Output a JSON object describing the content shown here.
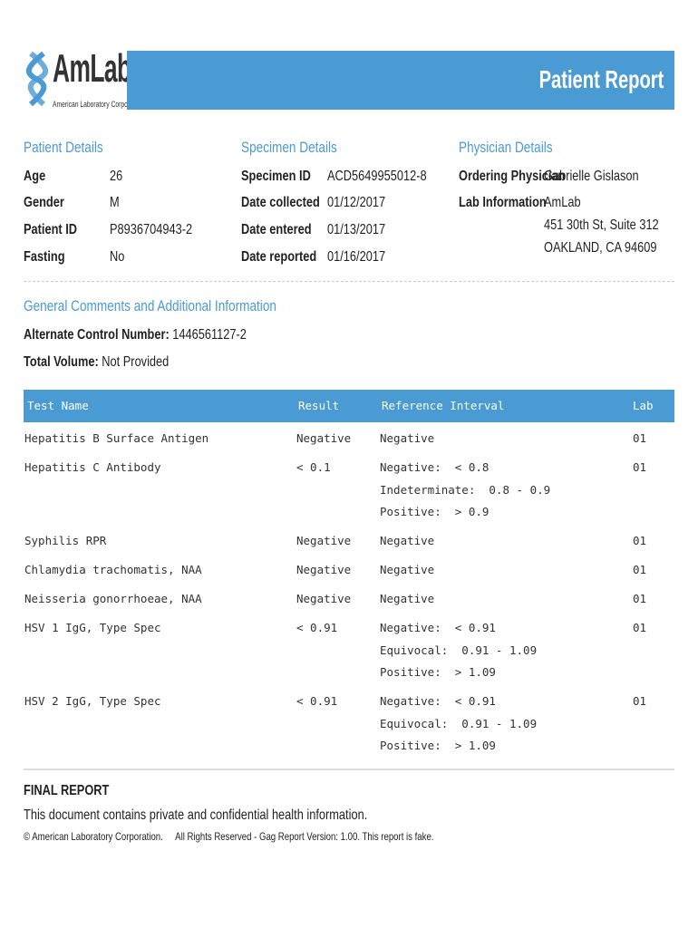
{
  "logo": {
    "name": "AmLab",
    "subtitle": "American Laboratory Corporation"
  },
  "header": {
    "title": "Patient Report",
    "color": "#4a9ad4"
  },
  "patient": {
    "title": "Patient Details",
    "rows": [
      {
        "label": "Age",
        "value": "26"
      },
      {
        "label": "Gender",
        "value": "M"
      },
      {
        "label": "Patient ID",
        "value": "P8936704943-2"
      },
      {
        "label": "Fasting",
        "value": "No"
      }
    ]
  },
  "specimen": {
    "title": "Specimen Details",
    "rows": [
      {
        "label": "Specimen ID",
        "value": "ACD5649955012-8"
      },
      {
        "label": "Date collected",
        "value": "01/12/2017"
      },
      {
        "label": "Date entered",
        "value": "01/13/2017"
      },
      {
        "label": "Date reported",
        "value": "01/16/2017"
      }
    ]
  },
  "physician": {
    "title": "Physician Details",
    "ordering_label": "Ordering Physician",
    "ordering_value": "Gabrielle Gislason",
    "lab_label": "Lab Information",
    "lab_lines": [
      "AmLab",
      "451 30th St, Suite 312",
      "OAKLAND, CA 94609"
    ]
  },
  "comments": {
    "title": "General Comments and Additional Information",
    "acn_label": "Alternate Control Number:",
    "acn_value": "1446561127-2",
    "tv_label": "Total Volume:",
    "tv_value": "Not Provided"
  },
  "table": {
    "headers": [
      "Test Name",
      "Result",
      "Reference Interval",
      "Lab"
    ],
    "rows": [
      {
        "test": "Hepatitis B Surface Antigen",
        "result": "Negative",
        "ref": [
          "Negative"
        ],
        "lab": "01"
      },
      {
        "test": "Hepatitis C Antibody",
        "result": "< 0.1",
        "ref": [
          "Negative:  < 0.8",
          "Indeterminate:  0.8 - 0.9",
          "Positive:  > 0.9"
        ],
        "lab": "01"
      },
      {
        "test": "Syphilis RPR",
        "result": "Negative",
        "ref": [
          "Negative"
        ],
        "lab": "01"
      },
      {
        "test": "Chlamydia trachomatis, NAA",
        "result": "Negative",
        "ref": [
          "Negative"
        ],
        "lab": "01"
      },
      {
        "test": "Neisseria gonorrhoeae, NAA",
        "result": "Negative",
        "ref": [
          "Negative"
        ],
        "lab": "01"
      },
      {
        "test": "HSV 1 IgG, Type Spec",
        "result": "< 0.91",
        "ref": [
          "Negative:  < 0.91",
          "Equivocal:  0.91 - 1.09",
          "Positive:  > 1.09"
        ],
        "lab": "01"
      },
      {
        "test": "HSV 2 IgG, Type Spec",
        "result": "< 0.91",
        "ref": [
          "Negative:  < 0.91",
          "Equivocal:  0.91 - 1.09",
          "Positive:  > 1.09"
        ],
        "lab": "01"
      }
    ]
  },
  "footer": {
    "final": "FINAL REPORT",
    "notice": "This document contains private and confidential health information.",
    "copyright": "© American Laboratory Corporation.",
    "rights": "All Rights Reserved - Gag Report Version: 1.00. This report is fake."
  }
}
